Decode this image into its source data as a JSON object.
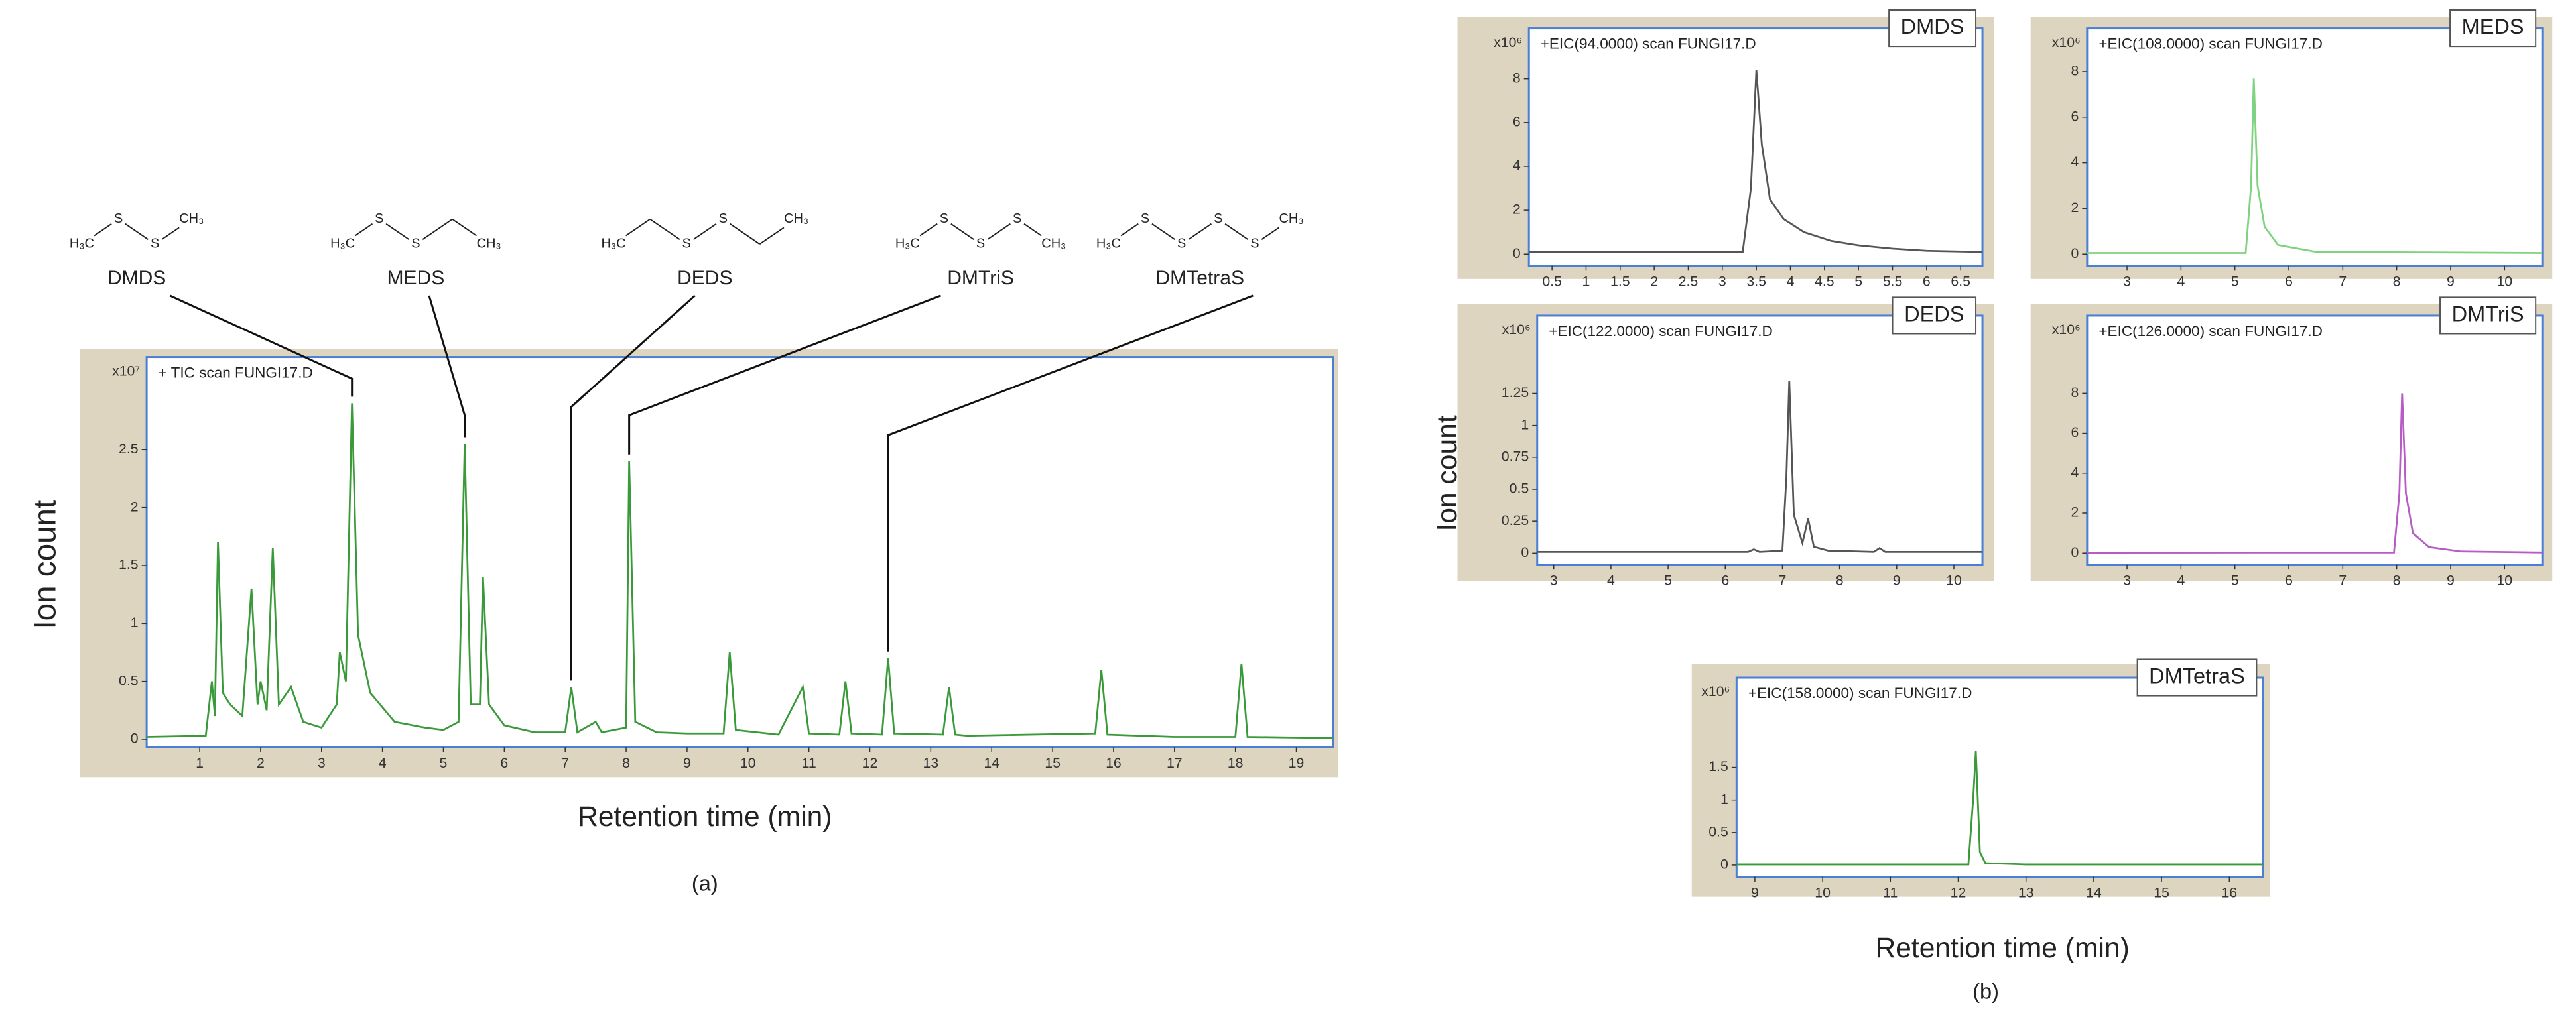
{
  "chart_data": [
    {
      "type": "line",
      "title": "+ TIC scan FUNGI17.D",
      "y_multiplier": "x10⁷",
      "ylabel": "Ion count",
      "xlabel": "Retention time (min)",
      "caption": "(a)",
      "color": "#3a9a3a",
      "xlim": [
        0.13,
        19.6
      ],
      "ylim": [
        -0.07,
        3.3
      ],
      "xticks": [
        1,
        2,
        3,
        4,
        5,
        6,
        7,
        8,
        9,
        10,
        11,
        12,
        13,
        14,
        15,
        16,
        17,
        18,
        19
      ],
      "yticks": [
        0,
        0.5,
        1,
        1.5,
        2,
        2.5
      ],
      "x": [
        0.13,
        1.1,
        1.2,
        1.25,
        1.3,
        1.38,
        1.5,
        1.7,
        1.85,
        1.95,
        2.0,
        2.1,
        2.2,
        2.3,
        2.5,
        2.7,
        3.0,
        3.25,
        3.3,
        3.4,
        3.5,
        3.6,
        3.8,
        4.2,
        4.7,
        5.0,
        5.25,
        5.35,
        5.45,
        5.6,
        5.65,
        5.75,
        6.0,
        6.5,
        7.0,
        7.1,
        7.2,
        7.5,
        7.6,
        8.0,
        8.05,
        8.15,
        8.5,
        9.0,
        9.6,
        9.7,
        9.8,
        10.5,
        10.9,
        11.0,
        11.5,
        11.6,
        11.7,
        12.2,
        12.3,
        12.4,
        13.2,
        13.3,
        13.4,
        13.6,
        15.7,
        15.8,
        15.9,
        17.0,
        18.0,
        18.1,
        18.2,
        19.6
      ],
      "values": [
        0.02,
        0.03,
        0.5,
        0.2,
        1.7,
        0.4,
        0.3,
        0.2,
        1.3,
        0.3,
        0.5,
        0.25,
        1.65,
        0.3,
        0.45,
        0.15,
        0.1,
        0.3,
        0.75,
        0.5,
        2.9,
        0.9,
        0.4,
        0.15,
        0.1,
        0.08,
        0.15,
        2.55,
        0.3,
        0.3,
        1.4,
        0.3,
        0.12,
        0.06,
        0.06,
        0.45,
        0.06,
        0.15,
        0.06,
        0.1,
        2.4,
        0.15,
        0.06,
        0.05,
        0.05,
        0.75,
        0.08,
        0.04,
        0.45,
        0.05,
        0.04,
        0.5,
        0.05,
        0.04,
        0.7,
        0.05,
        0.04,
        0.45,
        0.04,
        0.03,
        0.05,
        0.6,
        0.04,
        0.02,
        0.02,
        0.65,
        0.02,
        0.01
      ],
      "annotations": [
        {
          "label": "DMDS",
          "x": 3.5,
          "atoms": [
            "H₃C",
            "S",
            "S",
            "CH₃"
          ]
        },
        {
          "label": "MEDS",
          "x": 5.35,
          "atoms": [
            "H₃C",
            "S",
            "S",
            null,
            "CH₃"
          ]
        },
        {
          "label": "DEDS",
          "x": 7.1,
          "atoms": [
            "H₃C",
            null,
            "S",
            "S",
            null,
            "CH₃"
          ]
        },
        {
          "label": "DMTriS",
          "x": 8.05,
          "atoms": [
            "H₃C",
            "S",
            "S",
            "S",
            "CH₃"
          ]
        },
        {
          "label": "DMTetraS",
          "x": 12.3,
          "atoms": [
            "H₃C",
            "S",
            "S",
            "S",
            "S",
            "CH₃"
          ]
        }
      ]
    },
    {
      "type": "line",
      "title": "+EIC(94.0000) scan FUNGI17.D",
      "label": "DMDS",
      "y_multiplier": "x10⁶",
      "color": "#555555",
      "xlim": [
        0.16,
        6.82
      ],
      "ylim": [
        -0.53,
        10.3
      ],
      "xticks": [
        0.5,
        1,
        1.5,
        2,
        2.5,
        3,
        3.5,
        4,
        4.5,
        5,
        5.5,
        6,
        6.5
      ],
      "yticks": [
        0,
        2,
        4,
        6,
        8
      ],
      "x": [
        0.16,
        3.3,
        3.42,
        3.5,
        3.58,
        3.7,
        3.9,
        4.2,
        4.6,
        5.0,
        5.5,
        6.0,
        6.82
      ],
      "values": [
        0.1,
        0.1,
        3,
        8.4,
        5,
        2.5,
        1.6,
        1.0,
        0.6,
        0.4,
        0.25,
        0.15,
        0.1
      ]
    },
    {
      "type": "line",
      "title": "+EIC(108.0000) scan FUNGI17.D",
      "label": "MEDS",
      "y_multiplier": "x10⁶",
      "color": "#7fd27f",
      "xlim": [
        2.26,
        10.7
      ],
      "ylim": [
        -0.51,
        9.9
      ],
      "xticks": [
        3,
        4,
        5,
        6,
        7,
        8,
        9,
        10
      ],
      "yticks": [
        0,
        2,
        4,
        6,
        8
      ],
      "x": [
        2.26,
        5.2,
        5.3,
        5.35,
        5.42,
        5.55,
        5.8,
        6.5,
        10.7
      ],
      "values": [
        0.05,
        0.05,
        3,
        7.7,
        3,
        1.2,
        0.4,
        0.1,
        0.05
      ]
    },
    {
      "type": "line",
      "title": "+EIC(122.0000) scan FUNGI17.D",
      "label": "DEDS",
      "y_multiplier": "x10⁶",
      "color": "#555555",
      "xlim": [
        2.71,
        10.5
      ],
      "ylim": [
        -0.09,
        1.86
      ],
      "xticks": [
        3,
        4,
        5,
        6,
        7,
        8,
        9,
        10
      ],
      "yticks": [
        0,
        0.25,
        0.5,
        0.75,
        1,
        1.25
      ],
      "x": [
        2.71,
        6.4,
        6.5,
        6.6,
        7.0,
        7.07,
        7.12,
        7.2,
        7.35,
        7.45,
        7.55,
        7.8,
        8.6,
        8.7,
        8.8,
        10.5
      ],
      "values": [
        0.01,
        0.01,
        0.03,
        0.01,
        0.02,
        0.6,
        1.35,
        0.3,
        0.08,
        0.27,
        0.05,
        0.02,
        0.01,
        0.04,
        0.01,
        0.01
      ]
    },
    {
      "type": "line",
      "title": "+EIC(126.0000) scan FUNGI17.D",
      "label": "DMTriS",
      "y_multiplier": "x10⁶",
      "color": "#b65cc4",
      "xlim": [
        2.26,
        10.7
      ],
      "ylim": [
        -0.58,
        11.9
      ],
      "xticks": [
        3,
        4,
        5,
        6,
        7,
        8,
        9,
        10
      ],
      "yticks": [
        0,
        2,
        4,
        6,
        8
      ],
      "x": [
        2.26,
        7.95,
        8.05,
        8.1,
        8.17,
        8.3,
        8.6,
        9.2,
        10.7
      ],
      "values": [
        0.02,
        0.03,
        3,
        8,
        3,
        1,
        0.3,
        0.08,
        0.03
      ]
    },
    {
      "type": "line",
      "title": "+EIC(158.0000) scan FUNGI17.D",
      "label": "DMTetraS",
      "y_multiplier": "x10⁶",
      "color": "#3a9a3a",
      "xlim": [
        8.73,
        16.5
      ],
      "ylim": [
        -0.18,
        2.88
      ],
      "xticks": [
        9,
        10,
        11,
        12,
        13,
        14,
        15,
        16
      ],
      "yticks": [
        0,
        0.5,
        1,
        1.5
      ],
      "x": [
        8.73,
        12.15,
        12.22,
        12.26,
        12.32,
        12.4,
        13,
        16.5
      ],
      "values": [
        0.01,
        0.01,
        1,
        1.75,
        0.2,
        0.03,
        0.01,
        0.01
      ]
    }
  ],
  "panel_b": {
    "ylabel": "Ion count",
    "xlabel": "Retention time (min)",
    "caption": "(b)"
  }
}
